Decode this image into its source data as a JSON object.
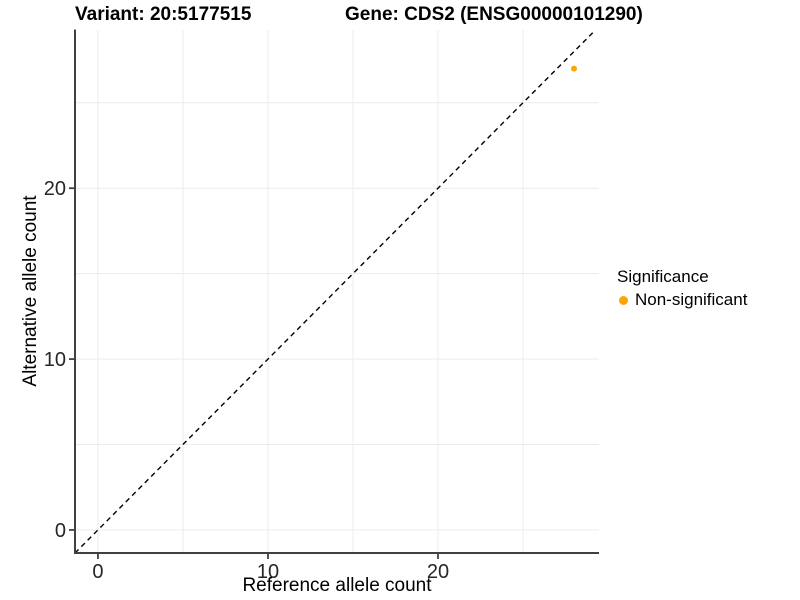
{
  "header": {
    "variant_title": "Variant: 20:5177515",
    "gene_title": "Gene: CDS2 (ENSG00000101290)"
  },
  "chart_data": {
    "type": "scatter",
    "title_left": "Variant: 20:5177515",
    "title_right": "Gene: CDS2 (ENSG00000101290)",
    "xlabel": "Reference allele count",
    "ylabel": "Alternative allele count",
    "xlim": [
      -1.35,
      29.47
    ],
    "ylim": [
      -1.35,
      29.26
    ],
    "x_ticks": [
      0,
      10,
      20
    ],
    "y_ticks": [
      0,
      10,
      20
    ],
    "x_grid": [
      0,
      5,
      10,
      15,
      20,
      25
    ],
    "y_grid": [
      0,
      5,
      10,
      15,
      20,
      25
    ],
    "grid_on": true,
    "reference_line": {
      "equation": "y = x",
      "style": "dashed",
      "color": "#000000"
    },
    "series": [
      {
        "name": "Non-significant",
        "color": "#FFA500",
        "points": [
          {
            "x": 28,
            "y": 27
          }
        ]
      }
    ],
    "legend": {
      "title": "Significance",
      "position": "right",
      "items": [
        {
          "label": "Non-significant",
          "color": "#FFA500"
        }
      ]
    },
    "colors": {
      "grid": "#ECECEC",
      "axis_line": "#404040",
      "tick_label": "#262626",
      "point": "#FFA500",
      "background": "#FFFFFF"
    }
  }
}
